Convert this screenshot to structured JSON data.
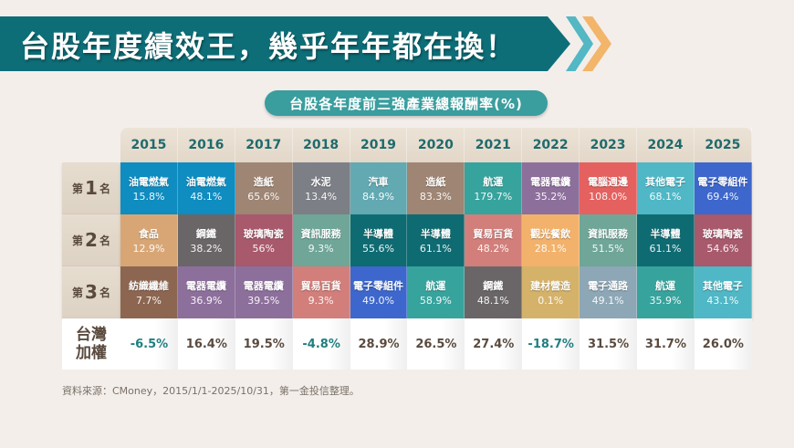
{
  "title": "台股年度績效王，幾乎年年都在換！",
  "subtitle": "台股各年度前三強產業總報酬率(%)",
  "years": [
    "2015",
    "2016",
    "2017",
    "2018",
    "2019",
    "2020",
    "2021",
    "2022",
    "2023",
    "2024",
    "2025"
  ],
  "rank_labels": [
    {
      "prefix": "第",
      "num": "1",
      "suffix": "名"
    },
    {
      "prefix": "第",
      "num": "2",
      "suffix": "名"
    },
    {
      "prefix": "第",
      "num": "3",
      "suffix": "名"
    }
  ],
  "ranks": [
    [
      {
        "industry": "油電燃氣",
        "return": "15.8%",
        "color": "#0f8cc0"
      },
      {
        "industry": "油電燃氣",
        "return": "48.1%",
        "color": "#0f8cc0"
      },
      {
        "industry": "造紙",
        "return": "65.6%",
        "color": "#9e8574"
      },
      {
        "industry": "水泥",
        "return": "13.4%",
        "color": "#7d7f86"
      },
      {
        "industry": "汽車",
        "return": "84.9%",
        "color": "#62a9b2"
      },
      {
        "industry": "造紙",
        "return": "83.3%",
        "color": "#9e8574"
      },
      {
        "industry": "航運",
        "return": "179.7%",
        "color": "#37a39d"
      },
      {
        "industry": "電器電纜",
        "return": "35.2%",
        "color": "#8d6f9c"
      },
      {
        "industry": "電腦週邊",
        "return": "108.0%",
        "color": "#e4615f"
      },
      {
        "industry": "其他電子",
        "return": "68.1%",
        "color": "#4fb7c5"
      },
      {
        "industry": "電子零組件",
        "return": "69.4%",
        "color": "#3d67cc"
      }
    ],
    [
      {
        "industry": "食品",
        "return": "12.9%",
        "color": "#d8a675"
      },
      {
        "industry": "鋼鐵",
        "return": "38.2%",
        "color": "#6a6668"
      },
      {
        "industry": "玻璃陶瓷",
        "return": "56%",
        "color": "#a8596c"
      },
      {
        "industry": "資訊服務",
        "return": "9.3%",
        "color": "#6fa698"
      },
      {
        "industry": "半導體",
        "return": "55.6%",
        "color": "#0f6b72"
      },
      {
        "industry": "半導體",
        "return": "61.1%",
        "color": "#0f6b72"
      },
      {
        "industry": "貿易百貨",
        "return": "48.2%",
        "color": "#d27f7b"
      },
      {
        "industry": "觀光餐飲",
        "return": "28.1%",
        "color": "#f2b26c"
      },
      {
        "industry": "資訊服務",
        "return": "51.5%",
        "color": "#6fa698"
      },
      {
        "industry": "半導體",
        "return": "61.1%",
        "color": "#0f6b72"
      },
      {
        "industry": "玻璃陶瓷",
        "return": "54.6%",
        "color": "#a8596c"
      }
    ],
    [
      {
        "industry": "紡織纖維",
        "return": "7.7%",
        "color": "#8c6651"
      },
      {
        "industry": "電器電纜",
        "return": "36.9%",
        "color": "#8d6f9c"
      },
      {
        "industry": "電器電纜",
        "return": "39.5%",
        "color": "#8d6f9c"
      },
      {
        "industry": "貿易百貨",
        "return": "9.3%",
        "color": "#d27f7b"
      },
      {
        "industry": "電子零組件",
        "return": "49.0%",
        "color": "#3d67cc"
      },
      {
        "industry": "航運",
        "return": "58.9%",
        "color": "#37a39d"
      },
      {
        "industry": "鋼鐵",
        "return": "48.1%",
        "color": "#6a6668"
      },
      {
        "industry": "建材營造",
        "return": "0.1%",
        "color": "#d4b26a"
      },
      {
        "industry": "電子通路",
        "return": "49.1%",
        "color": "#8ea7b6"
      },
      {
        "industry": "航運",
        "return": "35.9%",
        "color": "#37a39d"
      },
      {
        "industry": "其他電子",
        "return": "43.1%",
        "color": "#4fb7c5"
      }
    ]
  ],
  "taiex": {
    "label_line1": "台灣",
    "label_line2": "加權",
    "values": [
      "-6.5%",
      "16.4%",
      "19.5%",
      "-4.8%",
      "28.9%",
      "26.5%",
      "27.4%",
      "-18.7%",
      "31.5%",
      "31.7%",
      "26.0%"
    ]
  },
  "source": "資料來源：CMoney，2015/1/1-2025/10/31，第一金投信整理。",
  "colors": {
    "banner": "#0d6e78",
    "banner_arrow_1": "#53b7c4",
    "banner_arrow_2": "#f2b56a",
    "pill": "#3a9d9e",
    "year_text": "#1f6a6c",
    "negative_text": "#1f7f80",
    "positive_text": "#5a4a3e"
  }
}
